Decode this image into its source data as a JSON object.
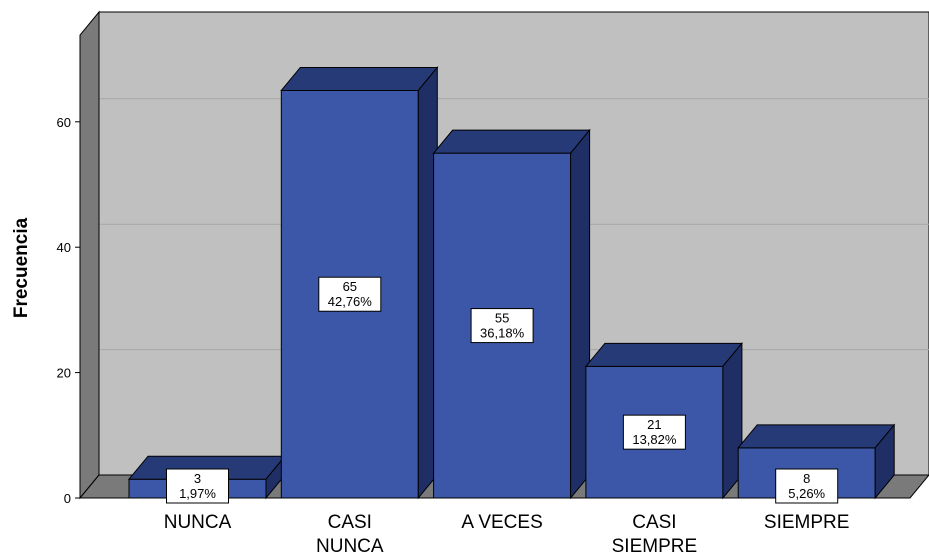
{
  "chart_data": {
    "type": "bar",
    "ylabel": "Frecuencia",
    "xlabel": "",
    "ylim": [
      0,
      75
    ],
    "yticks": [
      0,
      20,
      40,
      60
    ],
    "categories": [
      "NUNCA",
      "CASI NUNCA",
      "A VECES",
      "CASI SIEMPRE",
      "SIEMPRE"
    ],
    "category_lines": [
      [
        "NUNCA"
      ],
      [
        "CASI",
        "NUNCA"
      ],
      [
        "A VECES"
      ],
      [
        "CASI",
        "SIEMPRE"
      ],
      [
        "SIEMPRE"
      ]
    ],
    "values": [
      3,
      65,
      55,
      21,
      8
    ],
    "percent_labels": [
      "1,97%",
      "42,76%",
      "36,18%",
      "13,82%",
      "5,26%"
    ],
    "grid": true,
    "style": "3d",
    "colors": {
      "bar_front": "#3d57a8",
      "bar_top": "#263a78",
      "bar_side": "#1f2f66",
      "plot_back": "#c0c0c0",
      "plot_floor": "#7a7a7a",
      "plot_wall": "#7a7a7a",
      "gridline": "#a6a6a6"
    }
  }
}
